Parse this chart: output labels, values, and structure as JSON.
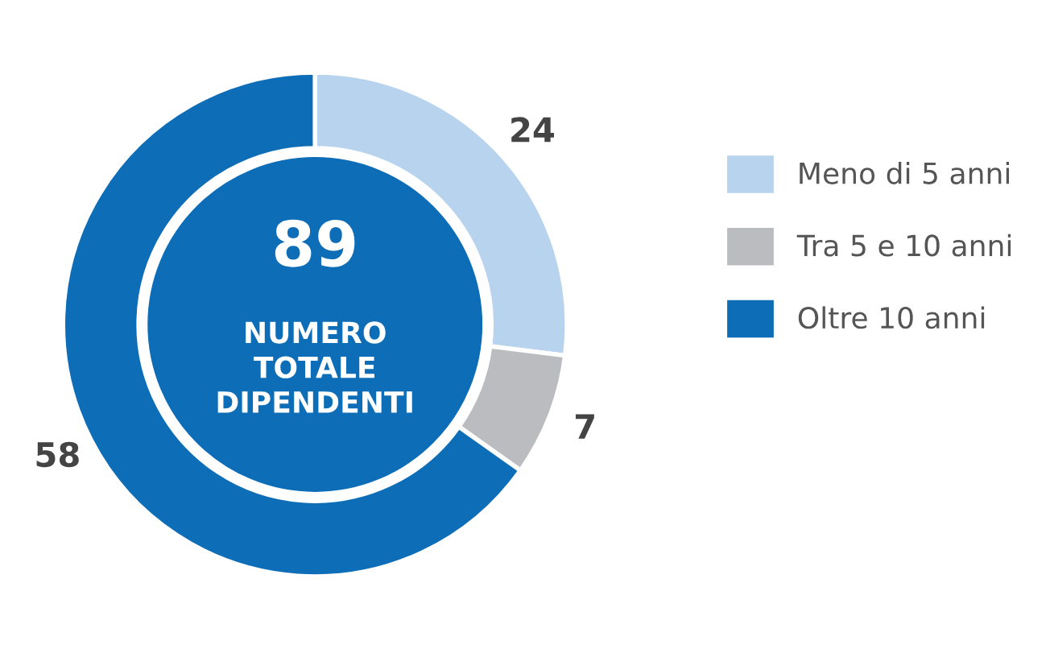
{
  "chart_data": {
    "type": "donut",
    "categories": [
      "Meno di 5 anni",
      "Tra 5 e 10 anni",
      "Oltre 10 anni"
    ],
    "values": [
      24,
      7,
      58
    ],
    "colors": [
      "#b7d3ee",
      "#bbbcc0",
      "#0d6db7"
    ],
    "data_labels": true,
    "legend": "right",
    "annotations": [
      "89",
      "NUMERO\nTOTALE\nDIPENDENTI"
    ]
  }
}
